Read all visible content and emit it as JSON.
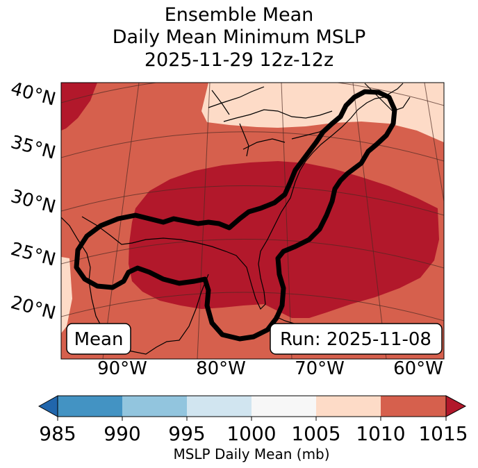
{
  "title": {
    "line1": "Ensemble Mean",
    "line2": "Daily Mean Minimum MSLP",
    "line3": "2025-11-29 12z-12z"
  },
  "map": {
    "lat_labels": [
      "40°N",
      "35°N",
      "30°N",
      "25°N",
      "20°N"
    ],
    "lon_labels": [
      "90°W",
      "80°W",
      "70°W",
      "60°W"
    ],
    "box_left": "Mean",
    "box_right": "Run: 2025-11-08",
    "contour_description": "black outline of ensemble member tracks",
    "colors": {
      "c1005_1010": "#fddbc7",
      "c1010_1015": "#d6604d",
      "c1015_plus": "#b2182b",
      "outline": "#000000"
    }
  },
  "colorbar": {
    "ticks": [
      "985",
      "990",
      "995",
      "1000",
      "1005",
      "1010",
      "1015"
    ],
    "label": "MSLP Daily Mean (mb)",
    "bins": [
      {
        "range": "<985",
        "color": "#2166ac"
      },
      {
        "range": "985-990",
        "color": "#4393c3"
      },
      {
        "range": "990-995",
        "color": "#92c5de"
      },
      {
        "range": "995-1000",
        "color": "#d1e5f0"
      },
      {
        "range": "1000-1005",
        "color": "#f7f7f7"
      },
      {
        "range": "1005-1010",
        "color": "#fddbc7"
      },
      {
        "range": "1010-1015",
        "color": "#d6604d"
      },
      {
        "range": ">1015",
        "color": "#b2182b"
      }
    ]
  }
}
